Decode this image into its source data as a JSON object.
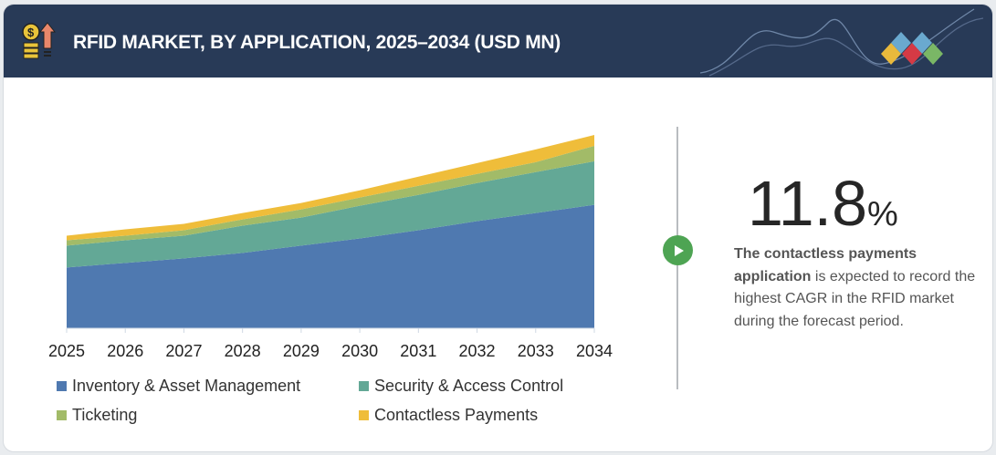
{
  "header": {
    "title": "RFID MARKET, BY APPLICATION, 2025–2034 (USD MN)",
    "icon": "money-growth-icon",
    "background": "#283a57"
  },
  "chart_data": {
    "type": "area",
    "stacked": true,
    "title": "RFID MARKET, BY APPLICATION, 2025–2034 (USD MN)",
    "categories": [
      "2025",
      "2026",
      "2027",
      "2028",
      "2029",
      "2030",
      "2031",
      "2032",
      "2033",
      "2034"
    ],
    "series": [
      {
        "name": "Inventory & Asset Management",
        "color": "#4f79b0",
        "values": [
          67,
          72,
          77,
          83,
          91,
          99,
          108,
          118,
          127,
          136
        ]
      },
      {
        "name": "Security & Access Control",
        "color": "#63a896",
        "values": [
          24,
          25,
          25,
          30,
          31,
          36,
          39,
          42,
          45,
          48
        ]
      },
      {
        "name": "Ticketing",
        "color": "#a2bb68",
        "values": [
          6,
          5,
          6,
          7,
          9,
          9,
          10,
          10,
          11,
          17
        ]
      },
      {
        "name": "Contactless Payments",
        "color": "#efbd3a",
        "values": [
          5,
          7,
          7,
          7,
          7,
          8,
          10,
          12,
          14,
          12
        ]
      }
    ],
    "ylim": [
      0,
      213
    ],
    "yaxis_shown": false,
    "grid": false,
    "legend": "bottom"
  },
  "highlight": {
    "value": "11.8",
    "unit": "%",
    "desc_bold": "The contactless payments application",
    "desc_rest": " is expected to record the highest CAGR in the RFID market during the forecast period.",
    "icon": "play-icon",
    "accent": "#4ea453"
  }
}
